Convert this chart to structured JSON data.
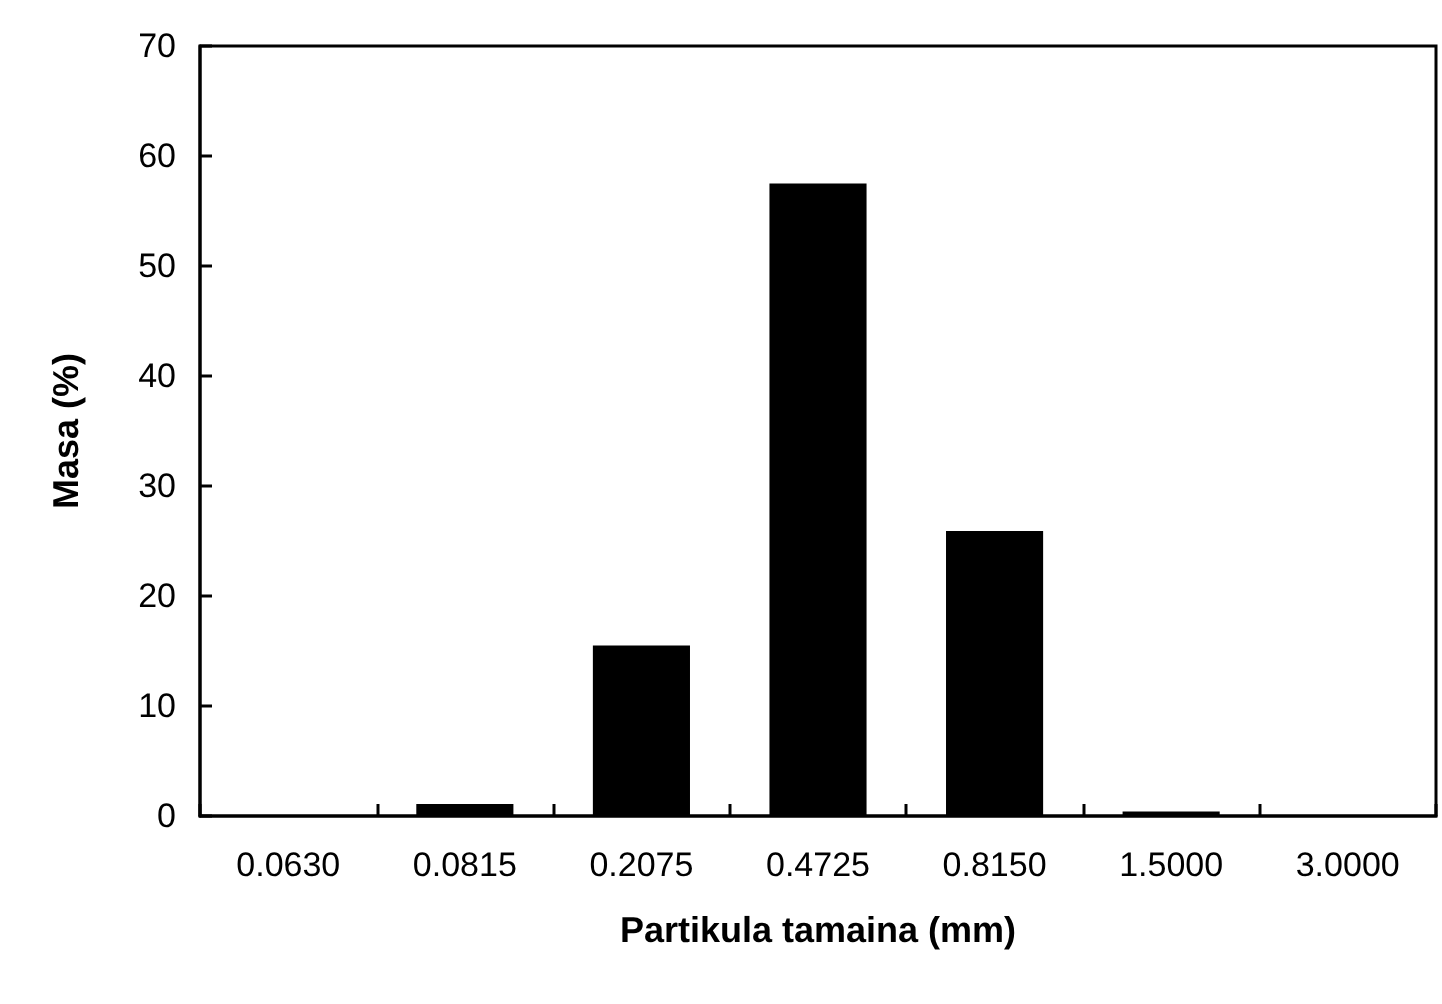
{
  "chart_data": {
    "type": "bar",
    "xlabel": "Partikula tamaina (mm)",
    "ylabel": "Masa (%)",
    "categories": [
      "0.0630",
      "0.0815",
      "0.2075",
      "0.4725",
      "0.8150",
      "1.5000",
      "3.0000"
    ],
    "values": [
      0,
      1.1,
      15.5,
      57.5,
      25.9,
      0.4,
      0
    ],
    "color": "#000000",
    "ylim": [
      0,
      70
    ],
    "yticks": [
      0,
      10,
      20,
      30,
      40,
      50,
      60,
      70
    ],
    "grid": false
  }
}
